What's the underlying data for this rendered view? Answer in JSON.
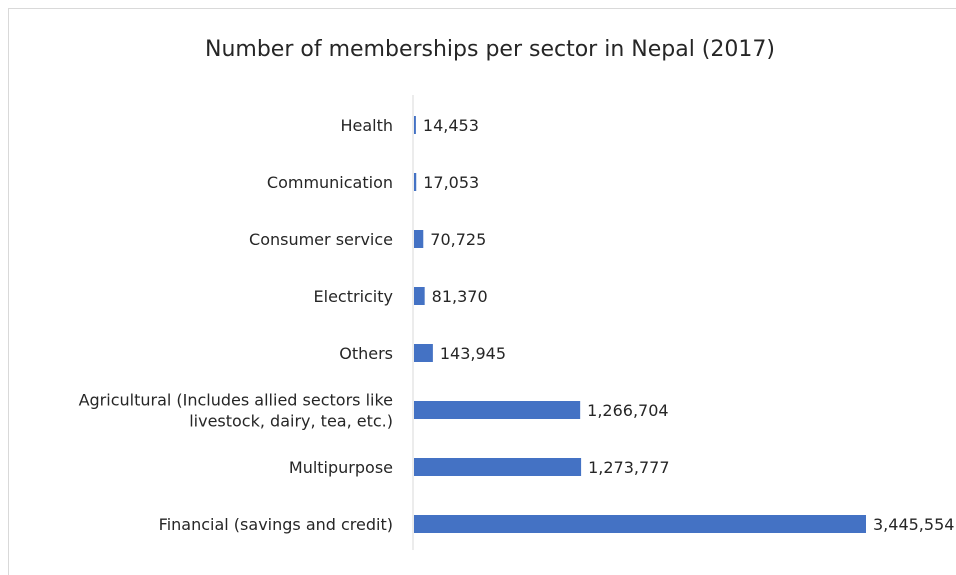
{
  "chart_data": {
    "type": "bar",
    "orientation": "horizontal",
    "title": "Number of memberships per sector in Nepal (2017)",
    "categories": [
      "Health",
      "Communication",
      "Consumer service",
      "Electricity",
      "Others",
      "Agricultural (Includes allied sectors like livestock, dairy, tea, etc.)",
      "Multipurpose",
      "Financial (savings and credit)"
    ],
    "category_lines": [
      [
        "Health"
      ],
      [
        "Communication"
      ],
      [
        "Consumer service"
      ],
      [
        "Electricity"
      ],
      [
        "Others"
      ],
      [
        "Agricultural (Includes allied sectors like",
        "livestock, dairy, tea, etc.)"
      ],
      [
        "Multipurpose"
      ],
      [
        "Financial (savings and credit)"
      ]
    ],
    "values": [
      14453,
      17053,
      70725,
      81370,
      143945,
      1266704,
      1273777,
      3445554
    ],
    "value_labels": [
      "14,453",
      "17,053",
      "70,725",
      "81,370",
      "143,945",
      "1,266,704",
      "1,273,777",
      "3,445,554"
    ],
    "xlabel": "",
    "ylabel": "",
    "xlim": [
      0,
      3445554
    ],
    "grid": false,
    "legend": "none",
    "bar_color": "#4472c4",
    "axis_color": "#d9d9d9",
    "text_color": "#262626"
  }
}
